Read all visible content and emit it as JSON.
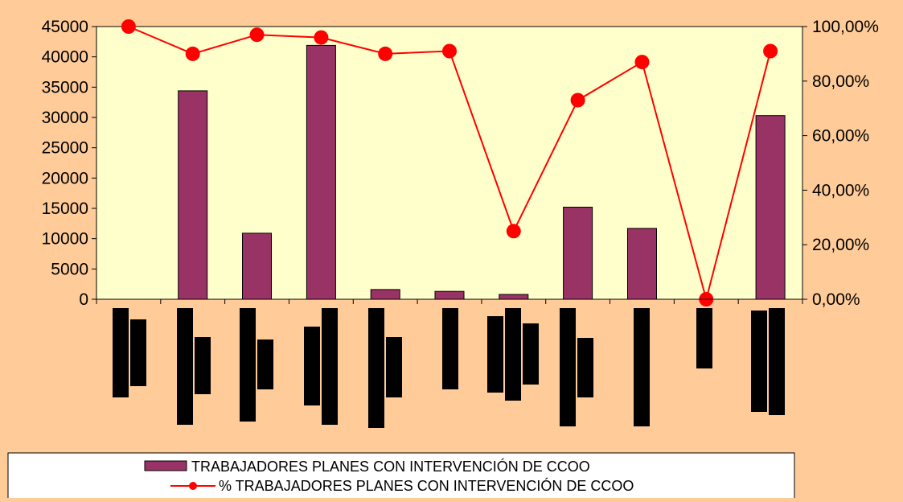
{
  "chart_data": {
    "type": "bar",
    "categories_note_empty": true,
    "categories": [
      "",
      "",
      "",
      "",
      "",
      "",
      "",
      "",
      "",
      "",
      ""
    ],
    "series": [
      {
        "name": "TRABAJADORES PLANES CON INTERVENCIÓN DE CCOO",
        "kind": "bar",
        "axis": "left",
        "color": "#993366",
        "values": [
          0,
          34400,
          10900,
          41900,
          1600,
          1300,
          800,
          15200,
          11700,
          0,
          30300
        ]
      },
      {
        "name": "% TRABAJADORES PLANES CON INTERVENCIÓN DE CCOO",
        "kind": "line",
        "axis": "right",
        "color": "#FF0000",
        "values": [
          100.0,
          90.0,
          97.0,
          96.0,
          90.0,
          91.0,
          25.0,
          73.0,
          87.0,
          0.0,
          91.0
        ]
      }
    ],
    "y_left": {
      "ylim": [
        0,
        45000
      ],
      "ticks": [
        "0",
        "5000",
        "10000",
        "15000",
        "20000",
        "25000",
        "30000",
        "35000",
        "40000",
        "45000"
      ]
    },
    "y_right": {
      "ylim": [
        0,
        100
      ],
      "ticks": [
        "0,00%",
        "20,00%",
        "40,00%",
        "60,00%",
        "80,00%",
        "100,00%"
      ]
    },
    "colors": {
      "outer_background": "#FFCC99",
      "plot_background": "#FFFFCC",
      "bar_fill": "#993366",
      "line": "#FF0000",
      "legend_background": "#FFFFFF",
      "redacted_labels": "#000000"
    },
    "legend": {
      "placement": "bottom"
    },
    "grid": false,
    "category_labels_redacted": true
  }
}
